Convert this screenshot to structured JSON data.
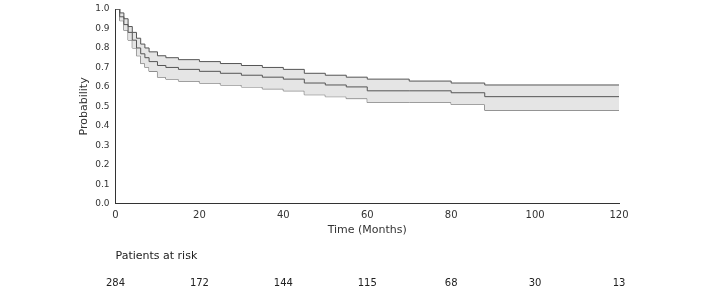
{
  "chart_data": {
    "type": "line",
    "line_style": "step",
    "color": "#555555",
    "grid": false,
    "x_label": "Time (Months)",
    "y_label": "Probability",
    "x": [
      0,
      1,
      2,
      3,
      4,
      5,
      6,
      7,
      8,
      10,
      12,
      15,
      20,
      25,
      30,
      35,
      40,
      45,
      50,
      55,
      60,
      70,
      80,
      88,
      120
    ],
    "values": [
      1,
      0.96,
      0.92,
      0.88,
      0.84,
      0.8,
      0.77,
      0.75,
      0.73,
      0.71,
      0.7,
      0.69,
      0.68,
      0.67,
      0.66,
      0.65,
      0.64,
      0.62,
      0.61,
      0.6,
      0.58,
      0.58,
      0.57,
      0.55,
      0.55
    ],
    "ci_lower": [
      1,
      0.94,
      0.89,
      0.84,
      0.8,
      0.76,
      0.72,
      0.7,
      0.68,
      0.65,
      0.64,
      0.63,
      0.62,
      0.61,
      0.6,
      0.59,
      0.58,
      0.56,
      0.55,
      0.54,
      0.52,
      0.52,
      0.51,
      0.48,
      0.48
    ],
    "ci_upper": [
      1,
      0.98,
      0.95,
      0.91,
      0.88,
      0.85,
      0.82,
      0.8,
      0.78,
      0.76,
      0.75,
      0.74,
      0.73,
      0.72,
      0.71,
      0.7,
      0.69,
      0.67,
      0.66,
      0.65,
      0.64,
      0.63,
      0.62,
      0.61,
      0.61
    ],
    "xlim": [
      0,
      120
    ],
    "xticks": [
      0,
      20,
      40,
      60,
      80,
      100,
      120
    ],
    "ylim": [
      0,
      1
    ],
    "yticks": [
      {
        "value": 0,
        "label": "0.0"
      },
      0.1,
      0.2,
      0.3,
      0.4,
      0.5,
      0.6,
      0.7,
      0.8,
      0.9,
      {
        "value": 1,
        "label": "1.0"
      }
    ],
    "risk_table": {
      "title": "Patients at risk",
      "x": [
        0,
        20,
        40,
        60,
        80,
        100,
        120
      ],
      "values": [
        284,
        172,
        144,
        115,
        68,
        30,
        13
      ]
    }
  }
}
